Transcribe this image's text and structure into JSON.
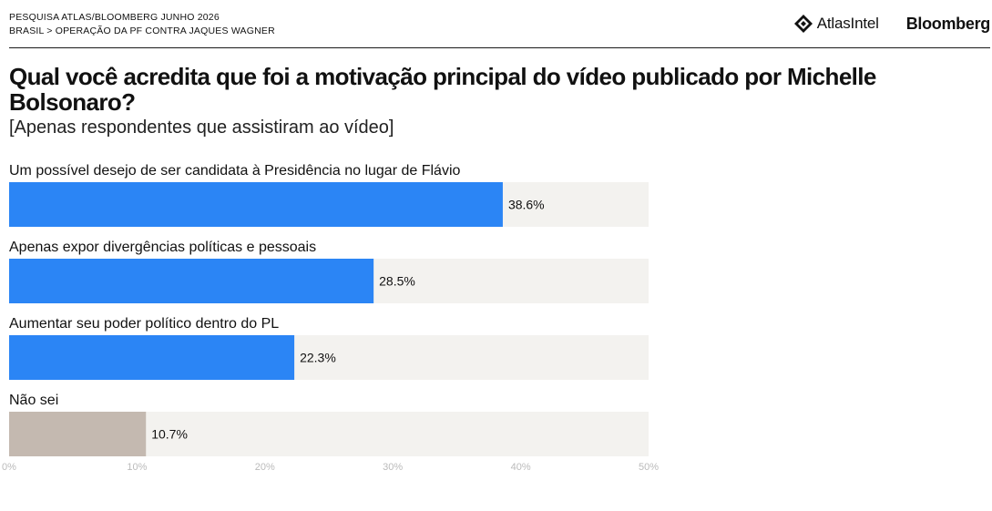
{
  "header": {
    "line1": "PESQUISA ATLAS/BLOOMBERG JUNHO 2026",
    "line2": "BRASIL > OPERAÇÃO DA PF CONTRA JAQUES WAGNER",
    "logos": {
      "atlas": "AtlasIntel",
      "bloomberg": "Bloomberg"
    }
  },
  "colors": {
    "primary_bar": "#2b85f5",
    "dont_know_bar": "#c4b9b0",
    "track": "#f3f2ef"
  },
  "chart_data": {
    "type": "bar",
    "orientation": "horizontal",
    "title": "Qual você acredita que foi a motivação principal do vídeo publicado por Michelle Bolsonaro?",
    "subtitle": "[Apenas respondentes que assistiram ao vídeo]",
    "categories": [
      "Um possível desejo de ser candidata à Presidência no lugar de Flávio",
      "Apenas expor divergências políticas e pessoais",
      "Aumentar seu poder político dentro do PL",
      "Não sei"
    ],
    "values": [
      38.6,
      28.5,
      22.3,
      10.7
    ],
    "value_labels": [
      "38.6%",
      "28.5%",
      "22.3%",
      "10.7%"
    ],
    "xlim": [
      0,
      50
    ],
    "xticks": [
      "0%",
      "10%",
      "20%",
      "30%",
      "40%",
      "50%"
    ],
    "grid": false
  }
}
